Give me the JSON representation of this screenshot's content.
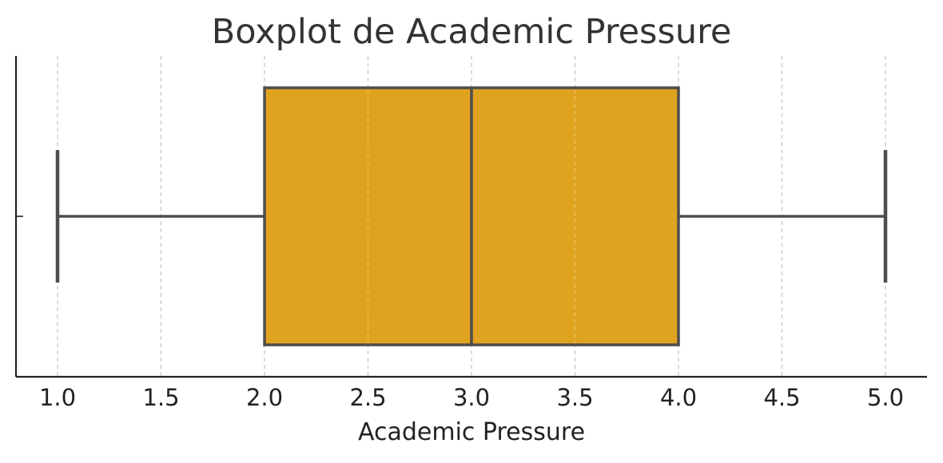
{
  "chart_data": {
    "type": "box",
    "title": "Boxplot de Academic Pressure",
    "xlabel": "Academic Pressure",
    "ylabel": "",
    "orientation": "horizontal",
    "xlim": [
      0.8,
      5.2
    ],
    "xticks": [
      1.0,
      1.5,
      2.0,
      2.5,
      3.0,
      3.5,
      4.0,
      4.5,
      5.0
    ],
    "xtick_labels": [
      "1.0",
      "1.5",
      "2.0",
      "2.5",
      "3.0",
      "3.5",
      "4.0",
      "4.5",
      "5.0"
    ],
    "grid": "vertical dashed",
    "box": {
      "whisker_low": 1.0,
      "q1": 2.0,
      "median": 3.0,
      "q3": 4.0,
      "whisker_high": 5.0
    },
    "colors": {
      "box_fill": "#e0a31f",
      "line": "#4d4d4d",
      "grid": "#c8c8c8",
      "axis": "#222222",
      "title": "#333333"
    }
  }
}
